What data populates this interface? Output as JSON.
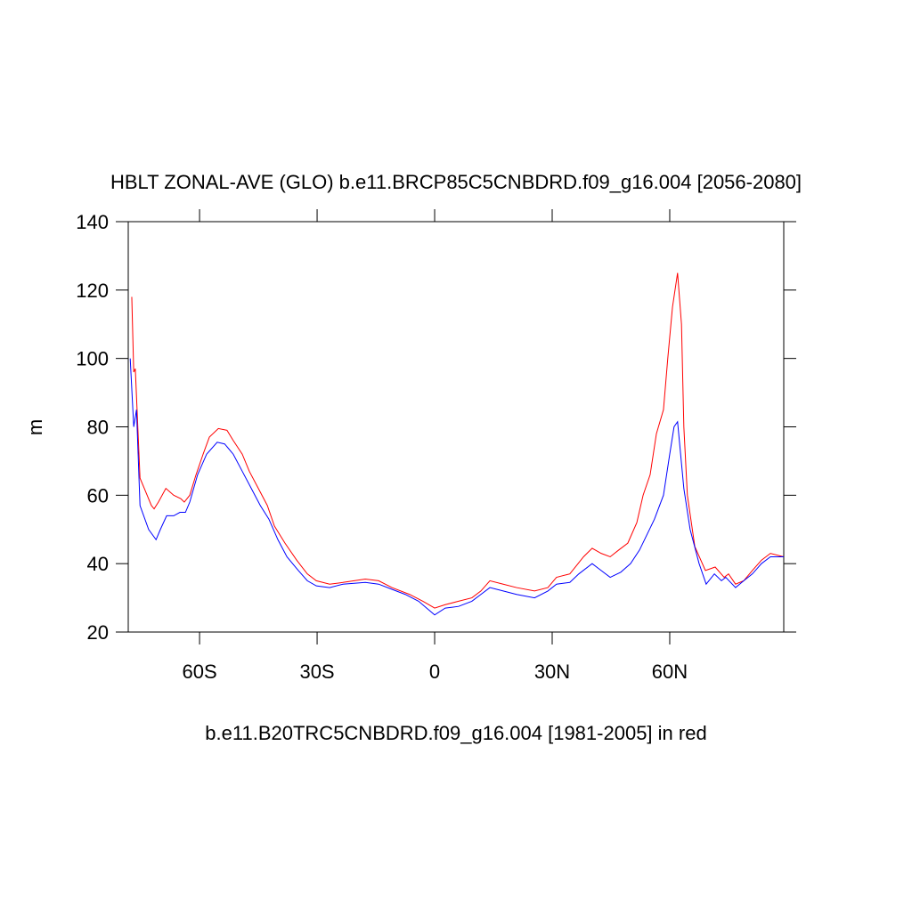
{
  "chart_data": {
    "type": "line",
    "title": "HBLT ZONAL-AVE (GLO) b.e11.BRCP85C5CNBDRD.f09_g16.004 [2056-2080]",
    "y_label": "m",
    "x_label": "b.e11.B20TRC5CNBDRD.f09_g16.004 [1981-2005] in red",
    "xlim": [
      -78.2,
      89.1
    ],
    "ylim": [
      20,
      140
    ],
    "xticks": [
      {
        "value": -60,
        "label": "60S"
      },
      {
        "value": -30,
        "label": "30S"
      },
      0,
      {
        "value": 30,
        "label": "30N"
      },
      {
        "value": 60,
        "label": "60N"
      }
    ],
    "yticks": [
      20,
      40,
      60,
      80,
      100,
      120,
      140
    ],
    "series": [
      {
        "color": "#ff0000",
        "x": [
          -77.3,
          -76.8,
          -76.4,
          -75.2,
          -74.1,
          -72.3,
          -71.6,
          -70.5,
          -68.6,
          -66.6,
          -64.8,
          -63.9,
          -62.5,
          -60.9,
          -59.1,
          -57.5,
          -55.2,
          -53.0,
          -51.4,
          -49.1,
          -47.3,
          -45.0,
          -42.7,
          -40.9,
          -38.2,
          -35.2,
          -32.5,
          -30.2,
          -26.8,
          -23.4,
          -17.7,
          -14.3,
          -10.9,
          -6.4,
          -3.0,
          0,
          2.7,
          6.1,
          9.5,
          11.8,
          14.1,
          17.5,
          20.9,
          25.5,
          28.9,
          31.1,
          34.5,
          38.0,
          40.2,
          42.5,
          44.8,
          47.0,
          49.3,
          51.6,
          53.2,
          55.0,
          56.6,
          58.4,
          59.5,
          60.7,
          62.0,
          63.0,
          63.6,
          64.5,
          66.4,
          69.1,
          71.6,
          73.9,
          75.0,
          76.8,
          78.9,
          81.1,
          83.4,
          85.7,
          89.1
        ],
        "values": [
          118,
          96,
          97,
          65,
          62,
          57,
          56,
          58,
          62,
          60,
          59,
          58,
          60,
          66,
          72,
          77,
          79.5,
          79,
          76,
          72,
          67,
          62,
          57,
          51,
          46,
          41,
          37,
          35,
          34,
          34.5,
          35.5,
          35,
          33,
          31,
          29,
          27,
          28,
          29,
          30,
          32,
          35,
          34,
          33,
          32,
          33,
          36,
          37,
          42,
          44.5,
          43,
          42,
          44,
          46,
          52,
          60,
          66,
          78,
          85,
          100,
          115,
          125,
          110,
          80,
          60,
          45,
          38,
          39,
          36,
          37,
          34,
          35,
          38,
          41,
          43,
          42
        ]
      },
      {
        "color": "#0000ff",
        "x": [
          -77.7,
          -76.8,
          -76.1,
          -75.2,
          -73.0,
          -71.1,
          -70.0,
          -68.4,
          -66.6,
          -65.0,
          -63.6,
          -62.5,
          -60.5,
          -58.2,
          -55.5,
          -53.6,
          -51.4,
          -49.1,
          -46.8,
          -44.5,
          -42.3,
          -40.0,
          -37.7,
          -34.8,
          -32.5,
          -30.2,
          -26.8,
          -23.4,
          -17.7,
          -14.3,
          -10.9,
          -7.5,
          -4.1,
          0,
          2.7,
          6.1,
          9.5,
          11.8,
          14.1,
          17.5,
          20.9,
          25.5,
          28.9,
          31.1,
          34.5,
          36.8,
          40.2,
          42.5,
          44.8,
          47.5,
          50.0,
          52.3,
          56.1,
          58.4,
          60.0,
          61.1,
          62.0,
          63.6,
          65.2,
          67.5,
          69.3,
          71.4,
          73.2,
          74.3,
          76.8,
          78.9,
          81.1,
          83.4,
          85.7,
          89.1
        ],
        "values": [
          100,
          80,
          85,
          57,
          50,
          47,
          50,
          54,
          54,
          55,
          55,
          58,
          66,
          72,
          75.5,
          75,
          72,
          67,
          62,
          57,
          53,
          47,
          42,
          38,
          35,
          33.5,
          33,
          34,
          34.5,
          34,
          32.5,
          31,
          29,
          25,
          27,
          27.5,
          29,
          31,
          33,
          32,
          31,
          30,
          32,
          34,
          34.5,
          37,
          40,
          38,
          36,
          37.5,
          40,
          44,
          53,
          60,
          72,
          80,
          81.5,
          62,
          50,
          40,
          34,
          37,
          35,
          36,
          33,
          35,
          37,
          40,
          42,
          42
        ]
      }
    ]
  }
}
